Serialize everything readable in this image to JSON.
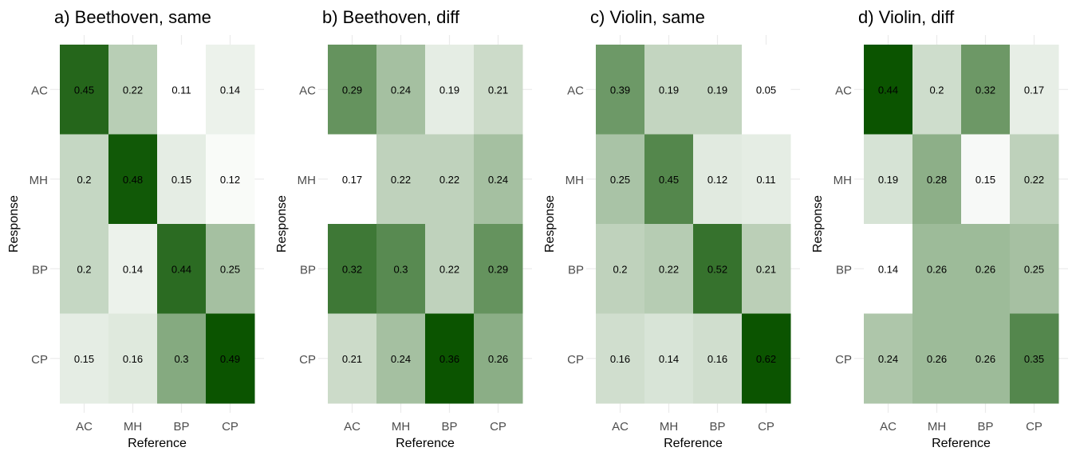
{
  "chart_data": {
    "type": "heatmap",
    "low_color": "#ffffff",
    "high_color": "#0b5400",
    "grid_color": "#ebebeb",
    "x_categories": [
      "AC",
      "MH",
      "BP",
      "CP"
    ],
    "y_categories": [
      "AC",
      "MH",
      "BP",
      "CP"
    ],
    "xlabel": "Reference",
    "ylabel": "Response",
    "panels": [
      {
        "title": "a) Beethoven, same",
        "values": [
          [
            0.45,
            0.22,
            0.11,
            0.14
          ],
          [
            0.2,
            0.48,
            0.15,
            0.12
          ],
          [
            0.2,
            0.14,
            0.44,
            0.25
          ],
          [
            0.15,
            0.16,
            0.3,
            0.49
          ]
        ],
        "labels": [
          [
            "0.45",
            "0.22",
            "0.11",
            "0.14"
          ],
          [
            "0.2",
            "0.48",
            "0.15",
            "0.12"
          ],
          [
            "0.2",
            "0.14",
            "0.44",
            "0.25"
          ],
          [
            "0.15",
            "0.16",
            "0.3",
            "0.49"
          ]
        ]
      },
      {
        "title": "b) Beethoven, diff",
        "values": [
          [
            0.29,
            0.24,
            0.19,
            0.21
          ],
          [
            0.17,
            0.22,
            0.22,
            0.24
          ],
          [
            0.32,
            0.3,
            0.22,
            0.29
          ],
          [
            0.21,
            0.24,
            0.36,
            0.26
          ]
        ],
        "labels": [
          [
            "0.29",
            "0.24",
            "0.19",
            "0.21"
          ],
          [
            "0.17",
            "0.22",
            "0.22",
            "0.24"
          ],
          [
            "0.32",
            "0.3",
            "0.22",
            "0.29"
          ],
          [
            "0.21",
            "0.24",
            "0.36",
            "0.26"
          ]
        ]
      },
      {
        "title": "c) Violin, same",
        "values": [
          [
            0.39,
            0.19,
            0.19,
            0.05
          ],
          [
            0.25,
            0.45,
            0.12,
            0.11
          ],
          [
            0.2,
            0.22,
            0.52,
            0.21
          ],
          [
            0.16,
            0.14,
            0.16,
            0.62
          ]
        ],
        "labels": [
          [
            "0.39",
            "0.19",
            "0.19",
            "0.05"
          ],
          [
            "0.25",
            "0.45",
            "0.12",
            "0.11"
          ],
          [
            "0.2",
            "0.22",
            "0.52",
            "0.21"
          ],
          [
            "0.16",
            "0.14",
            "0.16",
            "0.62"
          ]
        ]
      },
      {
        "title": "d) Violin, diff",
        "values": [
          [
            0.44,
            0.2,
            0.32,
            0.17
          ],
          [
            0.19,
            0.28,
            0.15,
            0.22
          ],
          [
            0.14,
            0.26,
            0.26,
            0.25
          ],
          [
            0.24,
            0.26,
            0.26,
            0.35
          ]
        ],
        "labels": [
          [
            "0.44",
            "0.2",
            "0.32",
            "0.17"
          ],
          [
            "0.19",
            "0.28",
            "0.15",
            "0.22"
          ],
          [
            "0.14",
            "0.26",
            "0.26",
            "0.25"
          ],
          [
            "0.24",
            "0.26",
            "0.26",
            "0.35"
          ]
        ]
      }
    ]
  }
}
